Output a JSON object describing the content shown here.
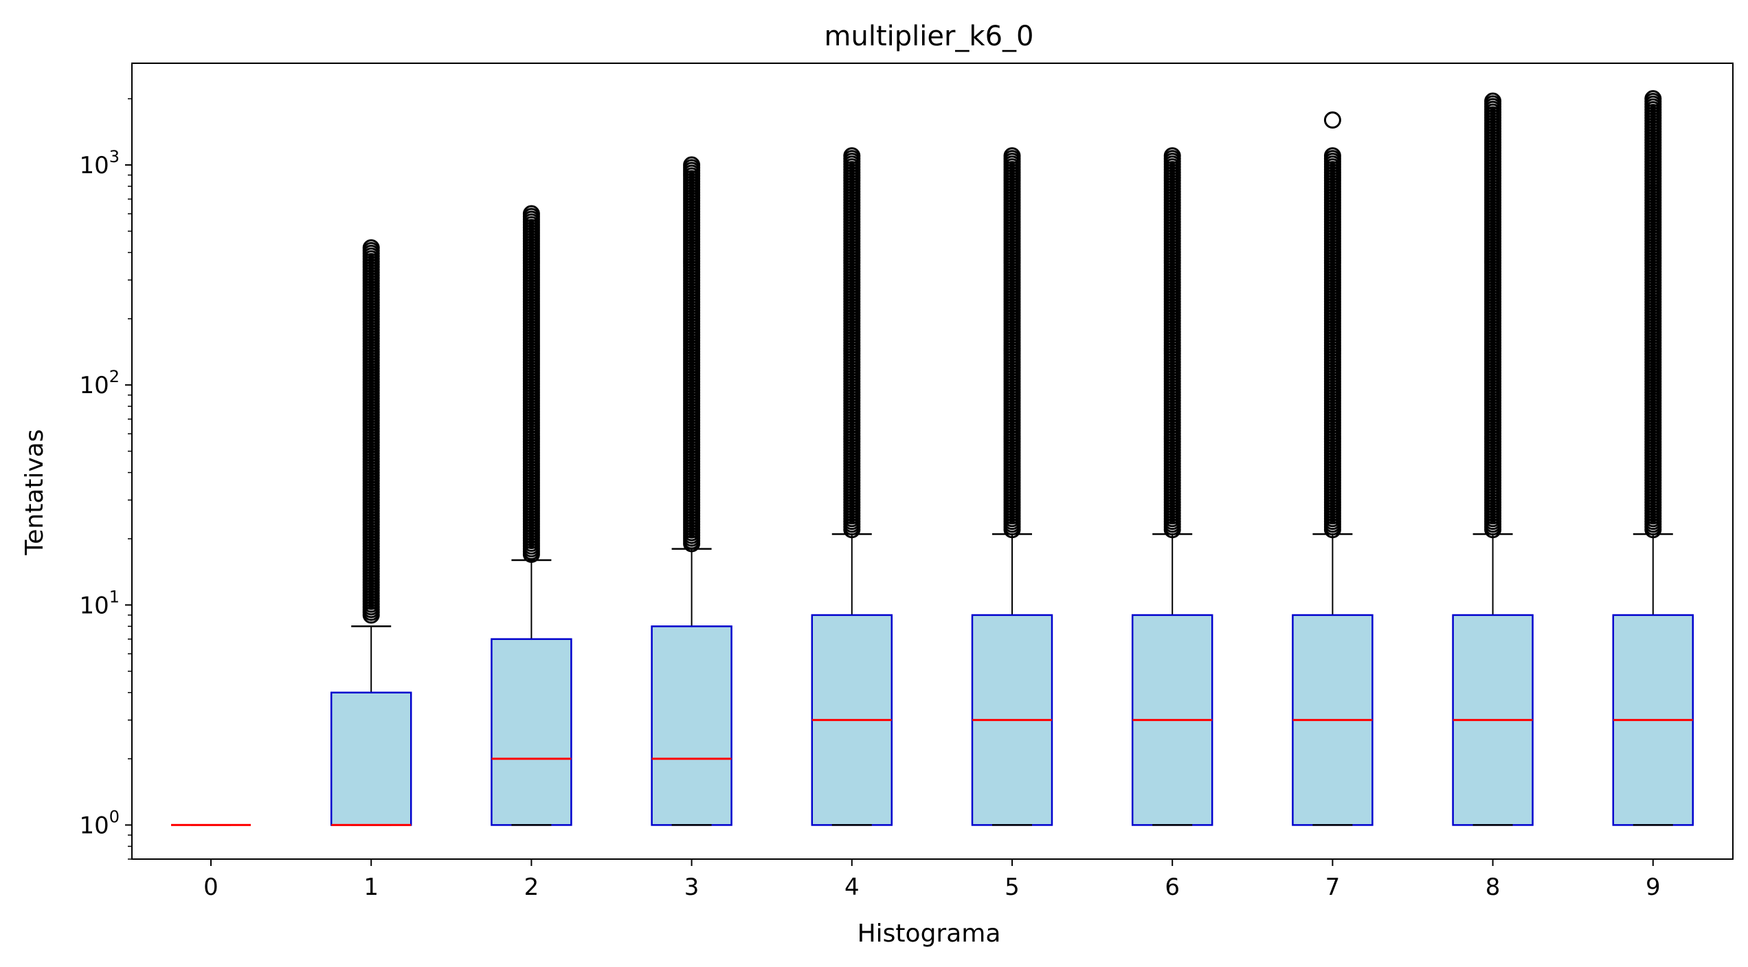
{
  "chart_data": {
    "type": "box",
    "title": "multiplier_k6_0",
    "xlabel": "Histograma",
    "ylabel": "Tentativas",
    "yscale": "log",
    "ylim": [
      0.7,
      2900
    ],
    "y_ticks": [
      {
        "value": 1,
        "label": "10",
        "exp": "0"
      },
      {
        "value": 10,
        "label": "10",
        "exp": "1"
      },
      {
        "value": 100,
        "label": "10",
        "exp": "2"
      },
      {
        "value": 1000,
        "label": "10",
        "exp": "3"
      }
    ],
    "categories": [
      "0",
      "1",
      "2",
      "3",
      "4",
      "5",
      "6",
      "7",
      "8",
      "9"
    ],
    "boxes": [
      {
        "category": "0",
        "whisker_low": 1,
        "q1": 1,
        "median": 1,
        "q3": 1,
        "whisker_high": 1,
        "outlier_min": null,
        "outlier_max": null,
        "extra_outliers": []
      },
      {
        "category": "1",
        "whisker_low": 1,
        "q1": 1,
        "median": 1,
        "q3": 4,
        "whisker_high": 8,
        "outlier_min": 9,
        "outlier_max": 420,
        "extra_outliers": []
      },
      {
        "category": "2",
        "whisker_low": 1,
        "q1": 1,
        "median": 2,
        "q3": 7,
        "whisker_high": 16,
        "outlier_min": 17,
        "outlier_max": 600,
        "extra_outliers": []
      },
      {
        "category": "3",
        "whisker_low": 1,
        "q1": 1,
        "median": 2,
        "q3": 8,
        "whisker_high": 18,
        "outlier_min": 19,
        "outlier_max": 1000,
        "extra_outliers": []
      },
      {
        "category": "4",
        "whisker_low": 1,
        "q1": 1,
        "median": 3,
        "q3": 9,
        "whisker_high": 21,
        "outlier_min": 22,
        "outlier_max": 1100,
        "extra_outliers": []
      },
      {
        "category": "5",
        "whisker_low": 1,
        "q1": 1,
        "median": 3,
        "q3": 9,
        "whisker_high": 21,
        "outlier_min": 22,
        "outlier_max": 1100,
        "extra_outliers": []
      },
      {
        "category": "6",
        "whisker_low": 1,
        "q1": 1,
        "median": 3,
        "q3": 9,
        "whisker_high": 21,
        "outlier_min": 22,
        "outlier_max": 1100,
        "extra_outliers": []
      },
      {
        "category": "7",
        "whisker_low": 1,
        "q1": 1,
        "median": 3,
        "q3": 9,
        "whisker_high": 21,
        "outlier_min": 22,
        "outlier_max": 1100,
        "extra_outliers": [
          1600
        ]
      },
      {
        "category": "8",
        "whisker_low": 1,
        "q1": 1,
        "median": 3,
        "q3": 9,
        "whisker_high": 21,
        "outlier_min": 22,
        "outlier_max": 1950,
        "extra_outliers": []
      },
      {
        "category": "9",
        "whisker_low": 1,
        "q1": 1,
        "median": 3,
        "q3": 9,
        "whisker_high": 21,
        "outlier_min": 22,
        "outlier_max": 2000,
        "extra_outliers": []
      }
    ],
    "colors": {
      "box_fill": "#add8e6",
      "box_edge": "#0000cd",
      "median": "#ff0000",
      "whisker": "#000000",
      "outlier_edge": "#000000"
    },
    "grid": false,
    "legend": "none"
  }
}
